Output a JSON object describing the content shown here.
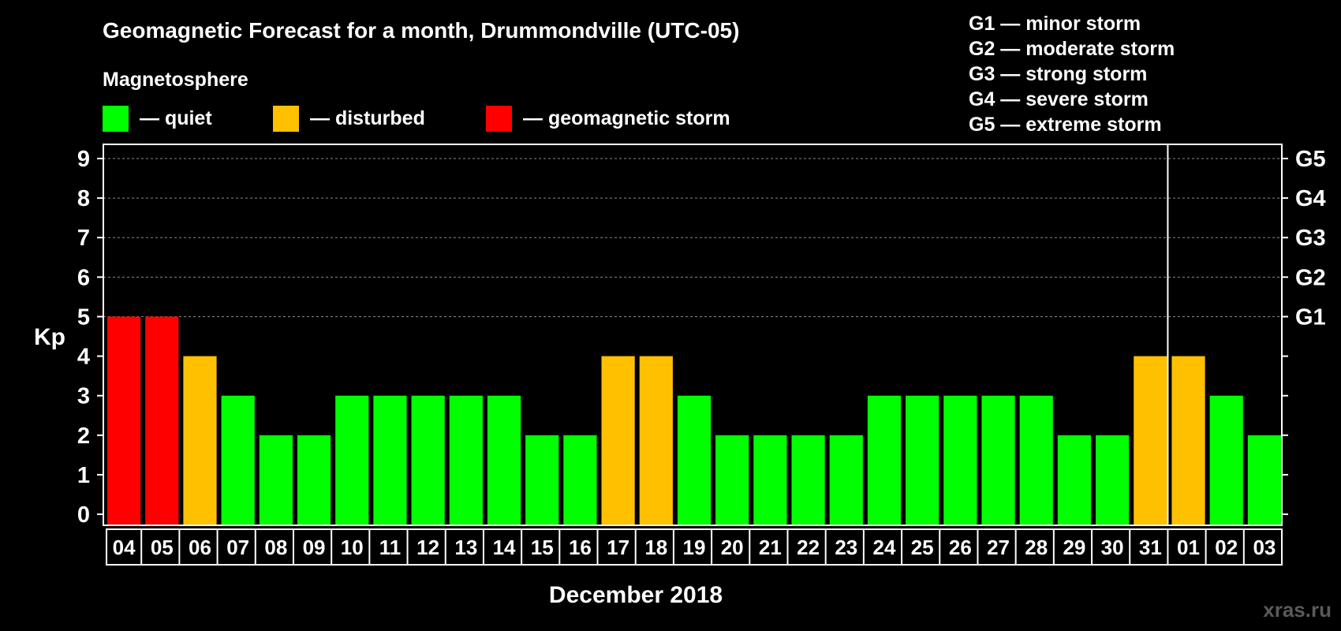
{
  "chart_data": {
    "type": "bar",
    "title": "Geomagnetic Forecast for a month, Drummondville (UTC-05)",
    "subtitle": "Magnetosphere",
    "ylabel": "Kp",
    "xlabel": "December 2018",
    "ylim": [
      0,
      9
    ],
    "y_ticks": [
      "0",
      "1",
      "2",
      "3",
      "4",
      "5",
      "6",
      "7",
      "8",
      "9"
    ],
    "right_axis_ticks": [
      {
        "kp": 5,
        "label": "G1"
      },
      {
        "kp": 6,
        "label": "G2"
      },
      {
        "kp": 7,
        "label": "G3"
      },
      {
        "kp": 8,
        "label": "G4"
      },
      {
        "kp": 9,
        "label": "G5"
      }
    ],
    "legend": [
      {
        "key": "quiet",
        "label": "— quiet",
        "color": "#00ff00"
      },
      {
        "key": "disturbed",
        "label": "— disturbed",
        "color": "#ffc000"
      },
      {
        "key": "storm",
        "label": "— geomagnetic storm",
        "color": "#ff0000"
      }
    ],
    "storm_scale": [
      "G1 — minor storm",
      "G2 — moderate storm",
      "G3 — strong storm",
      "G4 — severe storm",
      "G5 — extreme storm"
    ],
    "categories": [
      "04",
      "05",
      "06",
      "07",
      "08",
      "09",
      "10",
      "11",
      "12",
      "13",
      "14",
      "15",
      "16",
      "17",
      "18",
      "19",
      "20",
      "21",
      "22",
      "23",
      "24",
      "25",
      "26",
      "27",
      "28",
      "29",
      "30",
      "31",
      "01",
      "02",
      "03"
    ],
    "values": [
      5,
      5,
      4,
      3,
      2,
      2,
      3,
      3,
      3,
      3,
      3,
      2,
      2,
      4,
      4,
      3,
      2,
      2,
      2,
      2,
      3,
      3,
      3,
      3,
      3,
      2,
      2,
      4,
      4,
      3,
      2
    ],
    "month_divider_after": "31",
    "grid": true
  },
  "watermark": "xras.ru"
}
